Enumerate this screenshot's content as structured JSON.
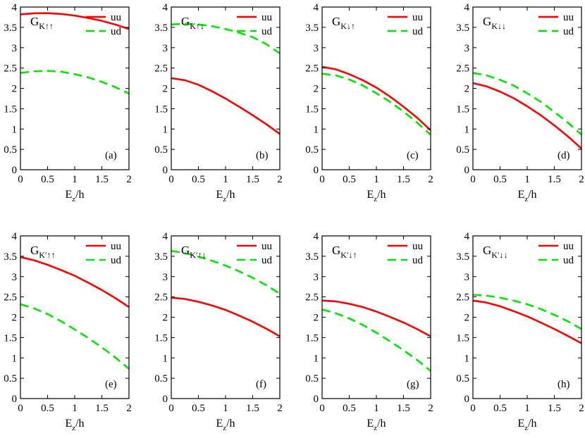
{
  "colors": {
    "uu": "#ff0000",
    "ud": "#00e600",
    "axis": "#000000"
  },
  "chart_data": [
    {
      "type": "line",
      "label": "(a)",
      "title_main": "G",
      "title_sub": "K↑↑",
      "xlabel_main": "E",
      "xlabel_sub": "z",
      "xlabel_tail": "/h",
      "xlim": [
        0,
        2
      ],
      "ylim": [
        0,
        4
      ],
      "x_ticks": [
        "0",
        "0.5",
        "1",
        "1.5",
        "2"
      ],
      "y_ticks": [
        "0",
        "0.5",
        "1",
        "1.5",
        "2",
        "2.5",
        "3",
        "3.5",
        "4"
      ],
      "series": [
        {
          "name": "uu",
          "style": "solid",
          "x": [
            0,
            0.25,
            0.5,
            0.75,
            1.0,
            1.25,
            1.5,
            1.75,
            2.0
          ],
          "y": [
            3.82,
            3.845,
            3.85,
            3.83,
            3.79,
            3.73,
            3.66,
            3.57,
            3.46
          ]
        },
        {
          "name": "ud",
          "style": "dashed",
          "x": [
            0,
            0.25,
            0.5,
            0.75,
            1.0,
            1.25,
            1.5,
            1.75,
            2.0
          ],
          "y": [
            2.38,
            2.42,
            2.43,
            2.41,
            2.35,
            2.27,
            2.16,
            2.03,
            1.87
          ]
        }
      ]
    },
    {
      "type": "line",
      "label": "(b)",
      "title_main": "G",
      "title_sub": "K↑↓",
      "xlabel_main": "E",
      "xlabel_sub": "z",
      "xlabel_tail": "/h",
      "xlim": [
        0,
        2
      ],
      "ylim": [
        0,
        4
      ],
      "x_ticks": [
        "0",
        "0.5",
        "1",
        "1.5",
        "2"
      ],
      "y_ticks": [
        "0",
        "0.5",
        "1",
        "1.5",
        "2",
        "2.5",
        "3",
        "3.5",
        "4"
      ],
      "series": [
        {
          "name": "uu",
          "style": "solid",
          "x": [
            0,
            0.25,
            0.5,
            0.75,
            1.0,
            1.25,
            1.5,
            1.75,
            2.0
          ],
          "y": [
            2.25,
            2.2,
            2.09,
            1.93,
            1.75,
            1.55,
            1.34,
            1.12,
            0.88
          ]
        },
        {
          "name": "ud",
          "style": "dashed",
          "x": [
            0,
            0.25,
            0.5,
            0.75,
            1.0,
            1.25,
            1.5,
            1.75,
            2.0
          ],
          "y": [
            3.57,
            3.59,
            3.57,
            3.53,
            3.46,
            3.37,
            3.26,
            3.09,
            2.86
          ]
        }
      ]
    },
    {
      "type": "line",
      "label": "(c)",
      "title_main": "G",
      "title_sub": "K↓↑",
      "xlabel_main": "E",
      "xlabel_sub": "z",
      "xlabel_tail": "/h",
      "xlim": [
        0,
        2
      ],
      "ylim": [
        0,
        4
      ],
      "x_ticks": [
        "0",
        "0.5",
        "1",
        "1.5",
        "2"
      ],
      "y_ticks": [
        "0",
        "0.5",
        "1",
        "1.5",
        "2",
        "2.5",
        "3",
        "3.5",
        "4"
      ],
      "series": [
        {
          "name": "uu",
          "style": "solid",
          "x": [
            0,
            0.25,
            0.5,
            0.75,
            1.0,
            1.25,
            1.5,
            1.75,
            2.0
          ],
          "y": [
            2.53,
            2.47,
            2.35,
            2.2,
            2.02,
            1.8,
            1.55,
            1.28,
            0.97
          ]
        },
        {
          "name": "ud",
          "style": "dashed",
          "x": [
            0,
            0.25,
            0.5,
            0.75,
            1.0,
            1.25,
            1.5,
            1.75,
            2.0
          ],
          "y": [
            2.36,
            2.32,
            2.22,
            2.07,
            1.88,
            1.67,
            1.43,
            1.16,
            0.86
          ]
        }
      ]
    },
    {
      "type": "line",
      "label": "(d)",
      "title_main": "G",
      "title_sub": "K↓↓",
      "xlabel_main": "E",
      "xlabel_sub": "z",
      "xlabel_tail": "/h",
      "xlim": [
        0,
        2
      ],
      "ylim": [
        0,
        4
      ],
      "x_ticks": [
        "0",
        "0.5",
        "1",
        "1.5",
        "2"
      ],
      "y_ticks": [
        "0",
        "0.5",
        "1",
        "1.5",
        "2",
        "2.5",
        "3",
        "3.5",
        "4"
      ],
      "series": [
        {
          "name": "uu",
          "style": "solid",
          "x": [
            0,
            0.25,
            0.5,
            0.75,
            1.0,
            1.25,
            1.5,
            1.75,
            2.0
          ],
          "y": [
            2.13,
            2.05,
            1.92,
            1.76,
            1.56,
            1.34,
            1.09,
            0.82,
            0.52
          ]
        },
        {
          "name": "ud",
          "style": "dashed",
          "x": [
            0,
            0.25,
            0.5,
            0.75,
            1.0,
            1.25,
            1.5,
            1.75,
            2.0
          ],
          "y": [
            2.38,
            2.32,
            2.21,
            2.07,
            1.88,
            1.67,
            1.42,
            1.16,
            0.86
          ]
        }
      ]
    },
    {
      "type": "line",
      "label": "(e)",
      "title_main": "G",
      "title_sub": "K′↑↑",
      "xlabel_main": "E",
      "xlabel_sub": "z",
      "xlabel_tail": "/h",
      "xlim": [
        0,
        2
      ],
      "ylim": [
        0,
        4
      ],
      "x_ticks": [
        "0",
        "0.5",
        "1",
        "1.5",
        "2"
      ],
      "y_ticks": [
        "0",
        "0.5",
        "1",
        "1.5",
        "2",
        "2.5",
        "3",
        "3.5",
        "4"
      ],
      "series": [
        {
          "name": "uu",
          "style": "solid",
          "x": [
            0,
            0.25,
            0.5,
            0.75,
            1.0,
            1.25,
            1.5,
            1.75,
            2.0
          ],
          "y": [
            3.48,
            3.4,
            3.29,
            3.16,
            3.02,
            2.85,
            2.67,
            2.47,
            2.25
          ]
        },
        {
          "name": "ud",
          "style": "dashed",
          "x": [
            0,
            0.25,
            0.5,
            0.75,
            1.0,
            1.25,
            1.5,
            1.75,
            2.0
          ],
          "y": [
            2.32,
            2.22,
            2.08,
            1.9,
            1.7,
            1.49,
            1.26,
            1.01,
            0.73
          ]
        }
      ]
    },
    {
      "type": "line",
      "label": "(f)",
      "title_main": "G",
      "title_sub": "K′↑↓",
      "xlabel_main": "E",
      "xlabel_sub": "z",
      "xlabel_tail": "/h",
      "xlim": [
        0,
        2
      ],
      "ylim": [
        0,
        4
      ],
      "x_ticks": [
        "0",
        "0.5",
        "1",
        "1.5",
        "2"
      ],
      "y_ticks": [
        "0",
        "0.5",
        "1",
        "1.5",
        "2",
        "2.5",
        "3",
        "3.5",
        "4"
      ],
      "series": [
        {
          "name": "uu",
          "style": "solid",
          "x": [
            0,
            0.25,
            0.5,
            0.75,
            1.0,
            1.25,
            1.5,
            1.75,
            2.0
          ],
          "y": [
            2.48,
            2.45,
            2.38,
            2.29,
            2.18,
            2.04,
            1.89,
            1.72,
            1.53
          ]
        },
        {
          "name": "ud",
          "style": "dashed",
          "x": [
            0,
            0.25,
            0.5,
            0.75,
            1.0,
            1.25,
            1.5,
            1.75,
            2.0
          ],
          "y": [
            3.63,
            3.58,
            3.49,
            3.39,
            3.27,
            3.13,
            2.97,
            2.79,
            2.58
          ]
        }
      ]
    },
    {
      "type": "line",
      "label": "(g)",
      "title_main": "G",
      "title_sub": "K′↓↑",
      "xlabel_main": "E",
      "xlabel_sub": "z",
      "xlabel_tail": "/h",
      "xlim": [
        0,
        2
      ],
      "ylim": [
        0,
        4
      ],
      "x_ticks": [
        "0",
        "0.5",
        "1",
        "1.5",
        "2"
      ],
      "y_ticks": [
        "0",
        "0.5",
        "1",
        "1.5",
        "2",
        "2.5",
        "3",
        "3.5",
        "4"
      ],
      "series": [
        {
          "name": "uu",
          "style": "solid",
          "x": [
            0,
            0.25,
            0.5,
            0.75,
            1.0,
            1.25,
            1.5,
            1.75,
            2.0
          ],
          "y": [
            2.41,
            2.39,
            2.33,
            2.25,
            2.14,
            2.01,
            1.87,
            1.71,
            1.53
          ]
        },
        {
          "name": "ud",
          "style": "dashed",
          "x": [
            0,
            0.25,
            0.5,
            0.75,
            1.0,
            1.25,
            1.5,
            1.75,
            2.0
          ],
          "y": [
            2.19,
            2.1,
            1.97,
            1.81,
            1.62,
            1.41,
            1.19,
            0.95,
            0.68
          ]
        }
      ]
    },
    {
      "type": "line",
      "label": "(h)",
      "title_main": "G",
      "title_sub": "K′↓↓",
      "xlabel_main": "E",
      "xlabel_sub": "z",
      "xlabel_tail": "/h",
      "xlim": [
        0,
        2
      ],
      "ylim": [
        0,
        4
      ],
      "x_ticks": [
        "0",
        "0.5",
        "1",
        "1.5",
        "2"
      ],
      "y_ticks": [
        "0",
        "0.5",
        "1",
        "1.5",
        "2",
        "2.5",
        "3",
        "3.5",
        "4"
      ],
      "series": [
        {
          "name": "uu",
          "style": "solid",
          "x": [
            0,
            0.25,
            0.5,
            0.75,
            1.0,
            1.25,
            1.5,
            1.75,
            2.0
          ],
          "y": [
            2.41,
            2.36,
            2.27,
            2.15,
            2.02,
            1.87,
            1.71,
            1.54,
            1.36
          ]
        },
        {
          "name": "ud",
          "style": "dashed",
          "x": [
            0,
            0.25,
            0.5,
            0.75,
            1.0,
            1.25,
            1.5,
            1.75,
            2.0
          ],
          "y": [
            2.55,
            2.53,
            2.48,
            2.41,
            2.32,
            2.2,
            2.06,
            1.9,
            1.71
          ]
        }
      ]
    }
  ]
}
